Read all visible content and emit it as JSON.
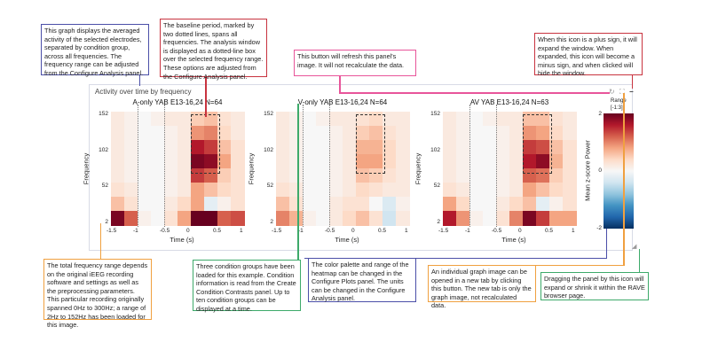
{
  "panel": {
    "title": "Activity over time by frequency",
    "icons": [
      "refresh-icon",
      "expand-icon",
      "minus-icon",
      "resize-handle-icon"
    ]
  },
  "plots": [
    {
      "title": "A-only YAB E13-16,24 N=64"
    },
    {
      "title": "V-only YAB E13-16,24 N=64"
    },
    {
      "title": "AV YAB E13-16,24 N=63"
    }
  ],
  "axes": {
    "ylabel": "Frequency",
    "xlabel": "Time (s)",
    "yticks": [
      "152",
      "102",
      "52",
      "2"
    ],
    "xticks": [
      "-1.5",
      "-1",
      "-0.5",
      "0",
      "0.5",
      "1"
    ]
  },
  "colorbar": {
    "label": "Mean z-score Power",
    "range_title": "Range",
    "range_value": "[-1:3]",
    "ticks": [
      "2",
      "0",
      "-2"
    ],
    "min": -2,
    "max": 2,
    "colors": [
      "#053061",
      "#2166ac",
      "#4393c3",
      "#92c5de",
      "#d1e5f0",
      "#f7f7f7",
      "#fddbc7",
      "#f4a582",
      "#d6604d",
      "#b2182b",
      "#67001f"
    ]
  },
  "chart_data": {
    "type": "heatmap",
    "x_time_s": [
      -1.5,
      -1.25,
      -1.0,
      -0.75,
      -0.5,
      -0.25,
      0.0,
      0.25,
      0.5,
      0.75
    ],
    "y_frequency_rows_top_to_bottom": [
      "152",
      "~131",
      "~112",
      "~92",
      "~72",
      "~52",
      "~27",
      "2"
    ],
    "xlim": [
      -1.5,
      1
    ],
    "ylim": [
      2,
      152
    ],
    "baseline_s": [
      -1,
      -0.5
    ],
    "analysis_window": {
      "time_s": [
        0,
        0.55
      ],
      "freq_hz": [
        70,
        152
      ]
    },
    "series": [
      {
        "name": "A-only YAB E13-16,24 N=64",
        "values": [
          [
            0.2,
            0.1,
            0,
            0.1,
            0.2,
            0.2,
            0.5,
            0.6,
            0.3,
            0.2
          ],
          [
            0.2,
            0.1,
            0,
            0,
            0.1,
            0.2,
            0.9,
            1.0,
            0.4,
            0.2
          ],
          [
            0.2,
            0.1,
            0,
            0,
            0.1,
            0.2,
            1.6,
            1.4,
            0.6,
            0.3
          ],
          [
            0.2,
            0.1,
            0,
            0,
            0.1,
            0.2,
            1.9,
            1.8,
            0.8,
            0.3
          ],
          [
            0.2,
            0.1,
            0,
            0,
            0.1,
            0.2,
            1.4,
            1.2,
            0.5,
            0.3
          ],
          [
            0.3,
            0.2,
            0,
            0,
            0.1,
            0.2,
            0.8,
            0.6,
            0.4,
            0.3
          ],
          [
            0.6,
            0.3,
            0,
            0,
            0.2,
            0.4,
            0.8,
            -0.2,
            0.1,
            0.3
          ],
          [
            1.9,
            1.2,
            0.1,
            0,
            0.3,
            0.8,
            2.0,
            2.0,
            1.2,
            1.3
          ]
        ]
      },
      {
        "name": "V-only YAB E13-16,24 N=64",
        "values": [
          [
            0.2,
            0.1,
            0,
            0.1,
            0.2,
            0.2,
            0.3,
            0.4,
            0.2,
            0.2
          ],
          [
            0.2,
            0.1,
            0,
            0,
            0.1,
            0.2,
            0.5,
            0.6,
            0.3,
            0.2
          ],
          [
            0.2,
            0.1,
            0,
            0,
            0.1,
            0.2,
            0.7,
            0.7,
            0.4,
            0.2
          ],
          [
            0.2,
            0.1,
            0,
            0,
            0.1,
            0.2,
            0.8,
            0.8,
            0.4,
            0.2
          ],
          [
            0.2,
            0.1,
            0,
            0,
            0.1,
            0.2,
            0.6,
            0.5,
            0.3,
            0.2
          ],
          [
            0.3,
            0.2,
            0,
            0,
            0.1,
            0.2,
            0.4,
            0.3,
            0.2,
            0.2
          ],
          [
            0.6,
            0.3,
            0,
            0,
            0.2,
            0.3,
            0.3,
            0.0,
            -0.3,
            0.1
          ],
          [
            1.0,
            0.7,
            0.1,
            0,
            0.2,
            0.4,
            0.6,
            0.3,
            -0.4,
            0.2
          ]
        ]
      },
      {
        "name": "AV YAB E13-16,24 N=63",
        "values": [
          [
            0.2,
            0.1,
            0,
            0.1,
            0.2,
            0.2,
            0.6,
            0.6,
            0.3,
            0.2
          ],
          [
            0.2,
            0.1,
            0,
            0,
            0.1,
            0.2,
            0.9,
            0.8,
            0.4,
            0.2
          ],
          [
            0.2,
            0.1,
            0,
            0,
            0.1,
            0.2,
            1.4,
            1.3,
            0.6,
            0.3
          ],
          [
            0.2,
            0.1,
            0,
            0,
            0.1,
            0.2,
            1.6,
            1.8,
            0.7,
            0.3
          ],
          [
            0.2,
            0.1,
            0,
            0,
            0.1,
            0.2,
            1.2,
            1.1,
            0.5,
            0.3
          ],
          [
            0.3,
            0.2,
            0,
            0,
            0.1,
            0.2,
            0.8,
            0.6,
            0.4,
            0.3
          ],
          [
            0.8,
            0.4,
            0,
            0,
            0.2,
            0.4,
            0.6,
            -0.2,
            0.1,
            0.3
          ],
          [
            1.6,
            0.9,
            0.1,
            0,
            0.3,
            1.0,
            1.9,
            1.4,
            0.8,
            0.8
          ]
        ]
      }
    ]
  },
  "annotations": {
    "graph_info": "This graph displays the averaged activity of the selected electrodes, separated by condition group, across all frequencies. The frequency range can be adjusted from the Configure Analysis panel.",
    "baseline_info": "The baseline period, marked by two dotted lines, spans all frequencies. The analysis window is displayed as a dotted-line box over the selected frequency range. These options are adjusted from the Configure Analysis panel.",
    "refresh_info": "This button will refresh this panel's image. It will not recalculate the data.",
    "expand_info": "When this icon is a plus sign, it will expand the window. When expanded, this icon will become a minus sign, and when clicked will hide the window.",
    "freq_range_info": "The total frequency range depends on the original iEEG recording software and settings as well as the preprocessing parameters. This particular recording originally spanned 0Hz to 300Hz; a range of 2Hz to 152Hz has been loaded for this image.",
    "conditions_info": "Three condition groups have been loaded for this example. Condition information is read from the Create Condition Contrasts panel. Up to ten condition groups can be displayed at a time.",
    "palette_info": "The color palette and range of the heatmap can be changed in the Configure Plots panel. The units can be changed in the Configure Analysis panel.",
    "newtab_info": "An individual graph image can be opened in a new tab by clicking this button. The new tab is only the graph image, not recalculated data.",
    "resize_info": "Dragging the panel by this icon will expand or shrink it within the RAVE browser page."
  }
}
